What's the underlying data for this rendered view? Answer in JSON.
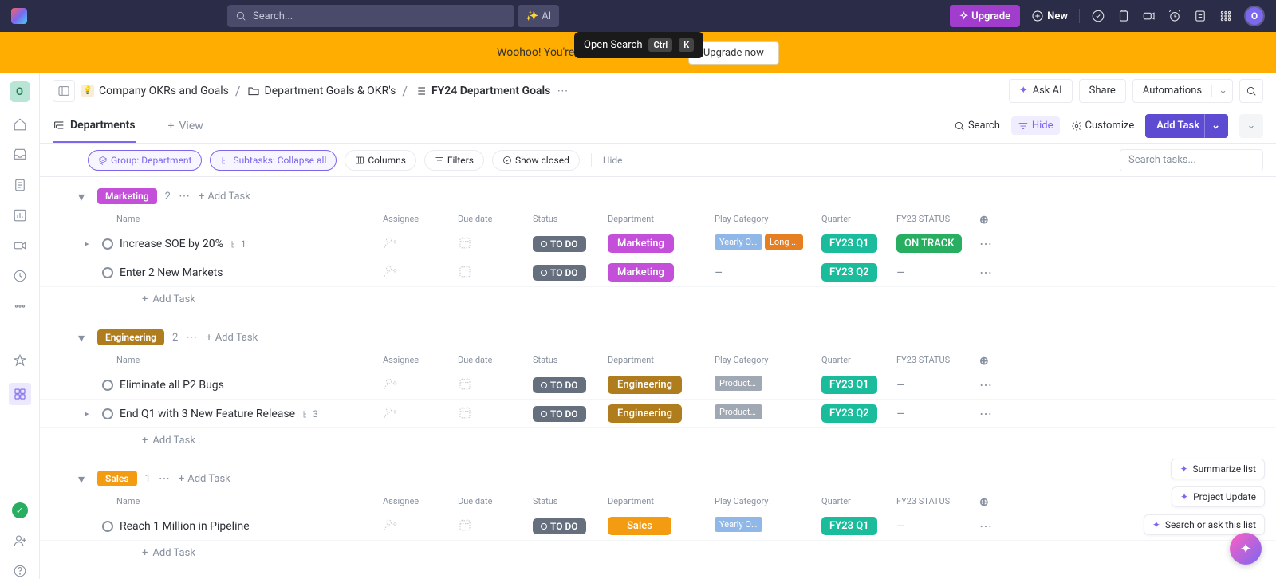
{
  "topnav": {
    "search_placeholder": "Search...",
    "ai_label": "AI",
    "upgrade": "Upgrade",
    "new": "New"
  },
  "tooltip": {
    "text": "Open Search",
    "key1": "Ctrl",
    "key2": "K"
  },
  "banner": {
    "text": "Woohoo! You're over your                                          upgrade :)",
    "cta": "Upgrade now"
  },
  "leftrail": {
    "workspace_initial": "O",
    "avatar_initial": "O"
  },
  "breadcrumbs": {
    "space": "Company OKRs and Goals",
    "folder": "Department Goals & OKR's",
    "list": "FY24 Department Goals"
  },
  "crumbar_actions": {
    "askai": "Ask AI",
    "share": "Share",
    "automations": "Automations"
  },
  "views": {
    "current": "Departments",
    "add": "View"
  },
  "viewbar": {
    "search": "Search",
    "hide": "Hide",
    "customize": "Customize",
    "addtask": "Add Task"
  },
  "filters": {
    "group": "Group: Department",
    "subtasks": "Subtasks: Collapse all",
    "columns": "Columns",
    "filters": "Filters",
    "show_closed": "Show closed",
    "hide": "Hide",
    "search_placeholder": "Search tasks..."
  },
  "columns": {
    "name": "Name",
    "assignee": "Assignee",
    "due": "Due date",
    "status": "Status",
    "department": "Department",
    "play": "Play Category",
    "quarter": "Quarter",
    "fy23": "FY23 STATUS"
  },
  "labels": {
    "todo": "TO DO",
    "add_task": "Add Task"
  },
  "groups": [
    {
      "name": "Marketing",
      "color": "#c44fd9",
      "count": "2",
      "tasks": [
        {
          "name": "Increase SOE by 20%",
          "subtasks": "1",
          "has_caret": true,
          "dept": "Marketing",
          "dept_color": "#c44fd9",
          "tags": [
            {
              "text": "Yearly OK...",
              "color": "#8fb8e8"
            },
            {
              "text": "Long ...",
              "color": "#e67e22"
            }
          ],
          "quarter": "FY23 Q1",
          "fy23": "ON TRACK",
          "fy23_color": "#27ae60"
        },
        {
          "name": "Enter 2 New Markets",
          "dept": "Marketing",
          "dept_color": "#c44fd9",
          "quarter": "FY23 Q2"
        }
      ]
    },
    {
      "name": "Engineering",
      "color": "#b07d1e",
      "count": "2",
      "tasks": [
        {
          "name": "Eliminate all P2 Bugs",
          "dept": "Engineering",
          "dept_color": "#b07d1e",
          "tags": [
            {
              "text": "Product Vision and ...",
              "color": "#a0a8b3"
            }
          ],
          "quarter": "FY23 Q1"
        },
        {
          "name": "End Q1 with 3 New Feature Release",
          "subtasks": "3",
          "has_caret": true,
          "dept": "Engineering",
          "dept_color": "#b07d1e",
          "tags": [
            {
              "text": "Product Vision and ...",
              "color": "#a0a8b3"
            }
          ],
          "quarter": "FY23 Q2"
        }
      ]
    },
    {
      "name": "Sales",
      "color": "#f39c12",
      "count": "1",
      "tasks": [
        {
          "name": "Reach 1 Million in Pipeline",
          "dept": "Sales",
          "dept_color": "#f39c12",
          "tags": [
            {
              "text": "Yearly OKR Sets",
              "color": "#8fb8e8"
            }
          ],
          "quarter": "FY23 Q1"
        }
      ]
    }
  ],
  "floating": {
    "summarize": "Summarize list",
    "project_update": "Project Update",
    "search_ask": "Search or ask this list"
  }
}
